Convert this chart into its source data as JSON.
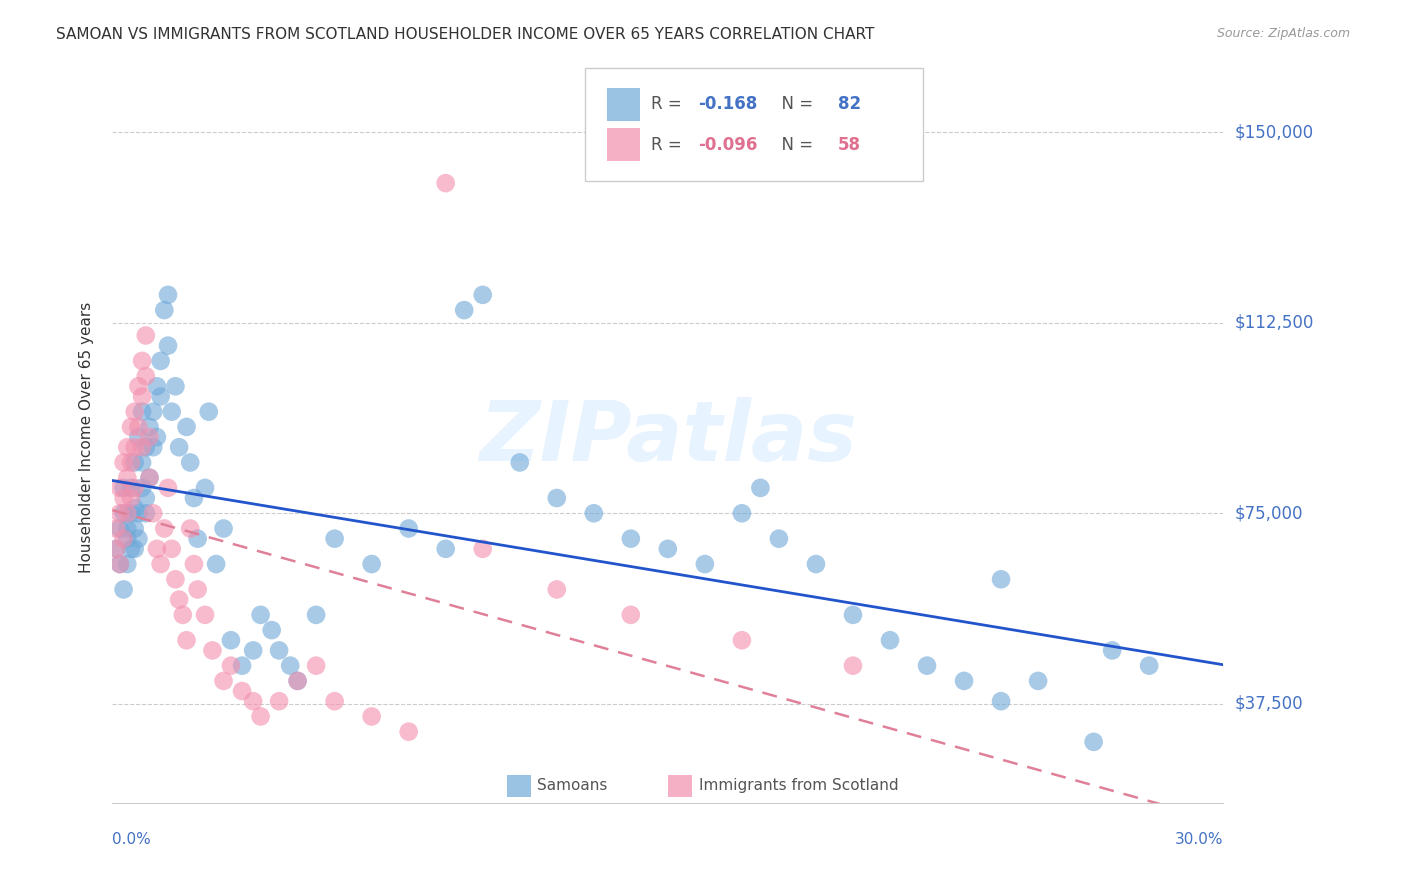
{
  "title": "SAMOAN VS IMMIGRANTS FROM SCOTLAND HOUSEHOLDER INCOME OVER 65 YEARS CORRELATION CHART",
  "source": "Source: ZipAtlas.com",
  "ylabel": "Householder Income Over 65 years",
  "xlim": [
    0.0,
    0.3
  ],
  "ylim": [
    18000,
    162000
  ],
  "yticks": [
    37500,
    75000,
    112500,
    150000
  ],
  "ytick_labels": [
    "$37,500",
    "$75,000",
    "$112,500",
    "$150,000"
  ],
  "color_blue": "#6EA8D8",
  "color_pink": "#F28FAD",
  "line_blue": "#2255CC",
  "line_pink": "#E08098",
  "watermark": "ZIPatlas",
  "r1": "-0.168",
  "n1": "82",
  "r2": "-0.096",
  "n2": "58",
  "samoans_x": [
    0.001,
    0.002,
    0.002,
    0.003,
    0.003,
    0.003,
    0.004,
    0.004,
    0.004,
    0.005,
    0.005,
    0.005,
    0.006,
    0.006,
    0.006,
    0.006,
    0.007,
    0.007,
    0.007,
    0.008,
    0.008,
    0.008,
    0.009,
    0.009,
    0.009,
    0.01,
    0.01,
    0.011,
    0.011,
    0.012,
    0.012,
    0.013,
    0.013,
    0.014,
    0.015,
    0.015,
    0.016,
    0.017,
    0.018,
    0.02,
    0.021,
    0.022,
    0.023,
    0.025,
    0.026,
    0.028,
    0.03,
    0.032,
    0.035,
    0.038,
    0.04,
    0.043,
    0.045,
    0.048,
    0.05,
    0.055,
    0.06,
    0.07,
    0.08,
    0.09,
    0.095,
    0.1,
    0.11,
    0.12,
    0.13,
    0.14,
    0.15,
    0.16,
    0.17,
    0.175,
    0.18,
    0.19,
    0.2,
    0.21,
    0.22,
    0.23,
    0.24,
    0.25,
    0.265,
    0.28,
    0.24,
    0.27
  ],
  "samoans_y": [
    68000,
    72000,
    65000,
    75000,
    80000,
    60000,
    70000,
    65000,
    72000,
    75000,
    68000,
    80000,
    76000,
    72000,
    85000,
    68000,
    90000,
    75000,
    70000,
    80000,
    95000,
    85000,
    88000,
    78000,
    75000,
    92000,
    82000,
    95000,
    88000,
    100000,
    90000,
    105000,
    98000,
    115000,
    118000,
    108000,
    95000,
    100000,
    88000,
    92000,
    85000,
    78000,
    70000,
    80000,
    95000,
    65000,
    72000,
    50000,
    45000,
    48000,
    55000,
    52000,
    48000,
    45000,
    42000,
    55000,
    70000,
    65000,
    72000,
    68000,
    115000,
    118000,
    85000,
    78000,
    75000,
    70000,
    68000,
    65000,
    75000,
    80000,
    70000,
    65000,
    55000,
    50000,
    45000,
    42000,
    38000,
    42000,
    30000,
    45000,
    62000,
    48000
  ],
  "scotland_x": [
    0.001,
    0.001,
    0.002,
    0.002,
    0.002,
    0.003,
    0.003,
    0.003,
    0.004,
    0.004,
    0.004,
    0.005,
    0.005,
    0.005,
    0.006,
    0.006,
    0.006,
    0.007,
    0.007,
    0.008,
    0.008,
    0.008,
    0.009,
    0.009,
    0.01,
    0.01,
    0.011,
    0.012,
    0.013,
    0.014,
    0.015,
    0.016,
    0.017,
    0.018,
    0.019,
    0.02,
    0.021,
    0.022,
    0.023,
    0.025,
    0.027,
    0.03,
    0.032,
    0.035,
    0.038,
    0.04,
    0.045,
    0.05,
    0.055,
    0.06,
    0.07,
    0.08,
    0.09,
    0.1,
    0.12,
    0.14,
    0.17,
    0.2
  ],
  "scotland_y": [
    72000,
    68000,
    80000,
    75000,
    65000,
    85000,
    78000,
    70000,
    88000,
    82000,
    75000,
    92000,
    85000,
    78000,
    95000,
    88000,
    80000,
    100000,
    92000,
    105000,
    98000,
    88000,
    110000,
    102000,
    90000,
    82000,
    75000,
    68000,
    65000,
    72000,
    80000,
    68000,
    62000,
    58000,
    55000,
    50000,
    72000,
    65000,
    60000,
    55000,
    48000,
    42000,
    45000,
    40000,
    38000,
    35000,
    38000,
    42000,
    45000,
    38000,
    35000,
    32000,
    140000,
    68000,
    60000,
    55000,
    50000,
    45000
  ]
}
